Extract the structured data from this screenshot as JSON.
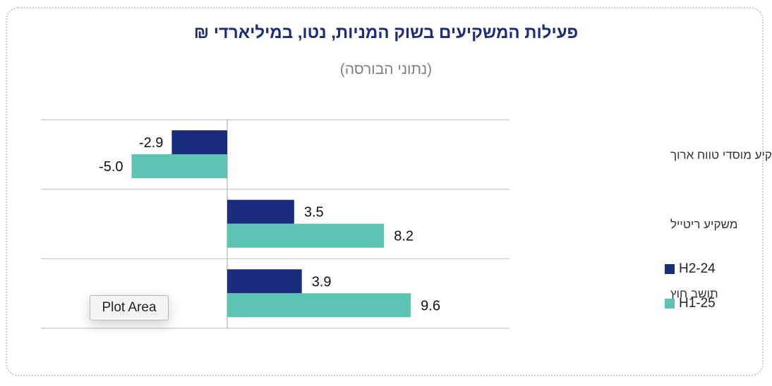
{
  "title": "פעילות המשקיעים בשוק המניות, נטו, במיליארדי ₪",
  "subtitle": "(נתוני הבורסה)",
  "tooltip": "Plot Area",
  "colors": {
    "H2-24": "#1b2b7e",
    "H1-25": "#5bc4b2",
    "grid": "#d0d0d0",
    "axis": "#bfbfbf"
  },
  "chart_data": {
    "type": "bar",
    "orientation": "horizontal",
    "categories": [
      "משקיע מוסדי טווח ארוך",
      "משקיע ריטייל",
      "תושב חוץ"
    ],
    "series": [
      {
        "name": "H2-24",
        "values": [
          -2.9,
          3.5,
          3.9
        ]
      },
      {
        "name": "H1-25",
        "values": [
          -5.0,
          8.2,
          9.6
        ]
      }
    ],
    "value_labels": [
      [
        "-2.9",
        "3.5",
        "3.9"
      ],
      [
        "-5.0",
        "8.2",
        "9.6"
      ]
    ],
    "xlim": [
      -5.7,
      12.0
    ],
    "grid": "horizontal category separators",
    "legend_position": "right"
  }
}
